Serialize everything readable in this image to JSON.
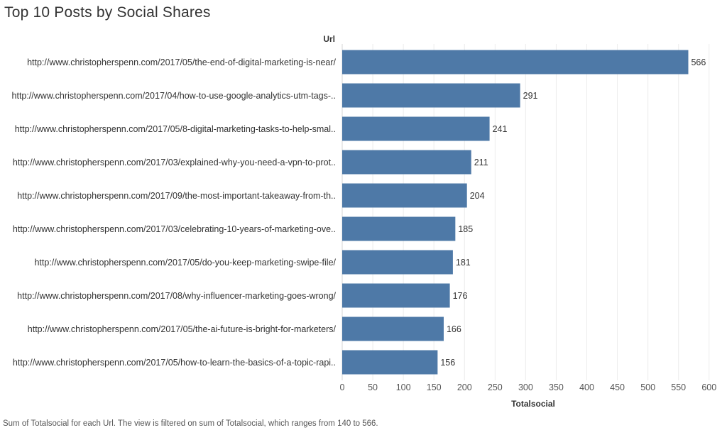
{
  "page": {
    "title": "Top 10 Posts by Social Shares",
    "caption": "Sum of Totalsocial for each Url. The view is filtered on sum of Totalsocial, which ranges from 140 to 566."
  },
  "colors": {
    "bar": "#4e79a7",
    "grid": "#ececec",
    "text": "#333333"
  },
  "chart_data": {
    "type": "bar",
    "orientation": "horizontal",
    "title": "Top 10 Posts by Social Shares",
    "row_header": "Url",
    "xlabel": "Totalsocial",
    "xlim": [
      0,
      620
    ],
    "xticks": [
      0,
      50,
      100,
      150,
      200,
      250,
      300,
      350,
      400,
      450,
      500,
      550,
      600
    ],
    "grid": true,
    "categories": [
      "http://www.christopherspenn.com/2017/05/the-end-of-digital-marketing-is-near/",
      "http://www.christopherspenn.com/2017/04/how-to-use-google-analytics-utm-tags-..",
      "http://www.christopherspenn.com/2017/05/8-digital-marketing-tasks-to-help-smal..",
      "http://www.christopherspenn.com/2017/03/explained-why-you-need-a-vpn-to-prot..",
      "http://www.christopherspenn.com/2017/09/the-most-important-takeaway-from-th..",
      "http://www.christopherspenn.com/2017/03/celebrating-10-years-of-marketing-ove..",
      "http://www.christopherspenn.com/2017/05/do-you-keep-marketing-swipe-file/",
      "http://www.christopherspenn.com/2017/08/why-influencer-marketing-goes-wrong/",
      "http://www.christopherspenn.com/2017/05/the-ai-future-is-bright-for-marketers/",
      "http://www.christopherspenn.com/2017/05/how-to-learn-the-basics-of-a-topic-rapi.."
    ],
    "values": [
      566,
      291,
      241,
      211,
      204,
      185,
      181,
      176,
      166,
      156
    ]
  }
}
